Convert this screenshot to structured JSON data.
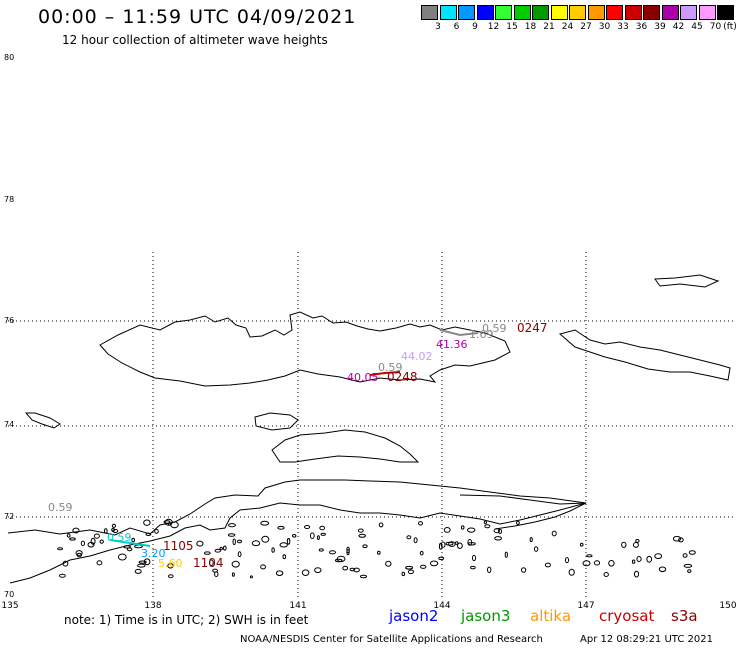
{
  "header": {
    "title": "00:00 – 11:59 UTC 04/09/2021",
    "subtitle": "12 hour collection of altimeter wave heights"
  },
  "legend": {
    "unit": "(ft)",
    "bins": [
      {
        "label": "3",
        "color": "#808080"
      },
      {
        "label": "6",
        "color": "#00e5ff"
      },
      {
        "label": "9",
        "color": "#0099ff"
      },
      {
        "label": "12",
        "color": "#0000ff"
      },
      {
        "label": "15",
        "color": "#33ff33"
      },
      {
        "label": "18",
        "color": "#00cc00"
      },
      {
        "label": "21",
        "color": "#009900"
      },
      {
        "label": "24",
        "color": "#ffff00"
      },
      {
        "label": "27",
        "color": "#ffcc00"
      },
      {
        "label": "30",
        "color": "#ff9900"
      },
      {
        "label": "33",
        "color": "#ff0000"
      },
      {
        "label": "36",
        "color": "#cc0000"
      },
      {
        "label": "39",
        "color": "#880000"
      },
      {
        "label": "42",
        "color": "#aa00aa"
      },
      {
        "label": "45",
        "color": "#cc99ff"
      },
      {
        "label": "70",
        "color": "#ff99ff"
      },
      {
        "label": "",
        "color": "#000000"
      }
    ]
  },
  "axes": {
    "y_ticks": [
      "80",
      "78",
      "76",
      "74",
      "72",
      "70"
    ],
    "x_ticks": [
      "135",
      "138",
      "141",
      "144",
      "147",
      "150"
    ]
  },
  "observations": [
    {
      "text": "0.59",
      "color": "#888888"
    },
    {
      "text": "1.69",
      "color": "#888888"
    },
    {
      "text": "41.36",
      "color": "#aa00aa"
    },
    {
      "text": "44.02",
      "color": "#cc99ff"
    },
    {
      "text": "0.59",
      "color": "#888888"
    },
    {
      "text": "40.05",
      "color": "#aa00aa"
    },
    {
      "text": "0.59",
      "color": "#888888"
    },
    {
      "text": "0.59",
      "color": "#00cccc"
    },
    {
      "text": "3.20",
      "color": "#0099ff"
    },
    {
      "text": "5.60",
      "color": "#ffcc00"
    }
  ],
  "pass_times": [
    {
      "text": "0247",
      "color": "#880000"
    },
    {
      "text": "0248",
      "color": "#880000"
    },
    {
      "text": "1105",
      "color": "#880000"
    },
    {
      "text": "1104",
      "color": "#880000"
    }
  ],
  "footer": {
    "note": "note: 1) Time is in UTC; 2) SWH is in feet",
    "satellites": [
      {
        "name": "jason2",
        "color": "#0000ff"
      },
      {
        "name": "jason3",
        "color": "#009900"
      },
      {
        "name": "altika",
        "color": "#ff9900"
      },
      {
        "name": "cryosat",
        "color": "#cc0000"
      },
      {
        "name": "s3a",
        "color": "#880000"
      }
    ],
    "credit": "NOAA/NESDIS Center for Satellite Applications and Research",
    "timestamp": "Apr 12 08:29:21 UTC 2021"
  }
}
